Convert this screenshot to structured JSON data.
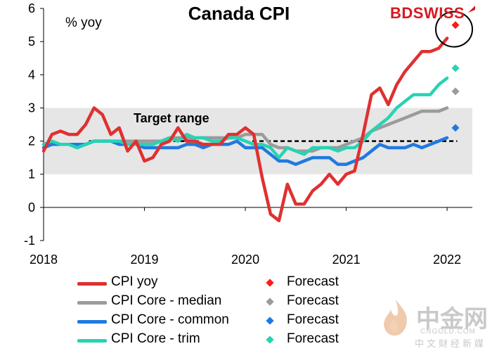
{
  "chart_data": {
    "type": "line",
    "title": "Canada CPI",
    "ylabel": "% yoy",
    "xlim": [
      2018.0,
      2022.25
    ],
    "ylim": [
      -1,
      6
    ],
    "y_ticks": [
      "-1",
      "0",
      "1",
      "2",
      "3",
      "4",
      "5",
      "6"
    ],
    "x_ticks": [
      {
        "label": "2018",
        "x": 2018.0
      },
      {
        "label": "2019",
        "x": 2019.0
      },
      {
        "label": "2020",
        "x": 2020.0
      },
      {
        "label": "2021",
        "x": 2021.0
      },
      {
        "label": "2022",
        "x": 2022.0
      }
    ],
    "target_range": {
      "label": "Target range",
      "low": 1.0,
      "high": 3.0,
      "midpoint": 2.0
    },
    "series": [
      {
        "name": "CPI yoy",
        "color": "#e03030",
        "x": [
          2018.0,
          2018.083,
          2018.167,
          2018.25,
          2018.333,
          2018.417,
          2018.5,
          2018.583,
          2018.667,
          2018.75,
          2018.833,
          2018.917,
          2019.0,
          2019.083,
          2019.167,
          2019.25,
          2019.333,
          2019.417,
          2019.5,
          2019.583,
          2019.667,
          2019.75,
          2019.833,
          2019.917,
          2020.0,
          2020.083,
          2020.167,
          2020.25,
          2020.333,
          2020.417,
          2020.5,
          2020.583,
          2020.667,
          2020.75,
          2020.833,
          2020.917,
          2021.0,
          2021.083,
          2021.167,
          2021.25,
          2021.333,
          2021.417,
          2021.5,
          2021.583,
          2021.667,
          2021.75,
          2021.833,
          2021.917,
          2022.0
        ],
        "values": [
          1.7,
          2.2,
          2.3,
          2.2,
          2.2,
          2.5,
          3.0,
          2.8,
          2.2,
          2.4,
          1.7,
          2.0,
          1.4,
          1.5,
          1.9,
          2.0,
          2.4,
          2.0,
          2.0,
          1.9,
          1.9,
          1.9,
          2.2,
          2.2,
          2.4,
          2.2,
          0.9,
          -0.2,
          -0.4,
          0.7,
          0.1,
          0.1,
          0.5,
          0.7,
          1.0,
          0.7,
          1.0,
          1.1,
          2.2,
          3.4,
          3.6,
          3.1,
          3.7,
          4.1,
          4.4,
          4.7,
          4.7,
          4.8,
          5.1
        ]
      },
      {
        "name": "CPI Core - median",
        "color": "#9b9b9b",
        "x": [
          2018.0,
          2018.083,
          2018.167,
          2018.25,
          2018.333,
          2018.417,
          2018.5,
          2018.583,
          2018.667,
          2018.75,
          2018.833,
          2018.917,
          2019.0,
          2019.083,
          2019.167,
          2019.25,
          2019.333,
          2019.417,
          2019.5,
          2019.583,
          2019.667,
          2019.75,
          2019.833,
          2019.917,
          2020.0,
          2020.083,
          2020.167,
          2020.25,
          2020.333,
          2020.417,
          2020.5,
          2020.583,
          2020.667,
          2020.75,
          2020.833,
          2020.917,
          2021.0,
          2021.083,
          2021.167,
          2021.25,
          2021.333,
          2021.417,
          2021.5,
          2021.583,
          2021.667,
          2021.75,
          2021.833,
          2021.917,
          2022.0
        ],
        "values": [
          1.9,
          1.9,
          1.9,
          1.9,
          1.9,
          1.9,
          2.0,
          2.0,
          2.0,
          2.0,
          2.0,
          2.0,
          2.0,
          2.0,
          2.0,
          2.1,
          2.1,
          2.1,
          2.1,
          2.1,
          2.1,
          2.1,
          2.1,
          2.1,
          2.2,
          2.2,
          2.2,
          1.9,
          1.8,
          1.8,
          1.7,
          1.7,
          1.7,
          1.8,
          1.8,
          1.8,
          1.9,
          2.0,
          2.1,
          2.3,
          2.4,
          2.5,
          2.6,
          2.7,
          2.8,
          2.9,
          2.9,
          2.9,
          3.0
        ]
      },
      {
        "name": "CPI Core - common",
        "color": "#1f7ae0",
        "x": [
          2018.0,
          2018.083,
          2018.167,
          2018.25,
          2018.333,
          2018.417,
          2018.5,
          2018.583,
          2018.667,
          2018.75,
          2018.833,
          2018.917,
          2019.0,
          2019.083,
          2019.167,
          2019.25,
          2019.333,
          2019.417,
          2019.5,
          2019.583,
          2019.667,
          2019.75,
          2019.833,
          2019.917,
          2020.0,
          2020.083,
          2020.167,
          2020.25,
          2020.333,
          2020.417,
          2020.5,
          2020.583,
          2020.667,
          2020.75,
          2020.833,
          2020.917,
          2021.0,
          2021.083,
          2021.167,
          2021.25,
          2021.333,
          2021.417,
          2021.5,
          2021.583,
          2021.667,
          2021.75,
          2021.833,
          2021.917,
          2022.0
        ],
        "values": [
          1.8,
          1.9,
          1.9,
          1.9,
          1.9,
          1.9,
          2.0,
          2.0,
          2.0,
          1.9,
          1.9,
          1.9,
          1.8,
          1.8,
          1.8,
          1.8,
          1.8,
          1.9,
          1.9,
          1.8,
          1.9,
          1.9,
          1.9,
          2.0,
          1.8,
          1.8,
          1.8,
          1.6,
          1.4,
          1.4,
          1.3,
          1.4,
          1.5,
          1.5,
          1.5,
          1.3,
          1.3,
          1.4,
          1.5,
          1.7,
          1.9,
          1.8,
          1.8,
          1.8,
          1.9,
          1.8,
          1.9,
          2.0,
          2.1
        ]
      },
      {
        "name": "CPI Core - trim",
        "color": "#27d3b2",
        "x": [
          2018.0,
          2018.083,
          2018.167,
          2018.25,
          2018.333,
          2018.417,
          2018.5,
          2018.583,
          2018.667,
          2018.75,
          2018.833,
          2018.917,
          2019.0,
          2019.083,
          2019.167,
          2019.25,
          2019.333,
          2019.417,
          2019.5,
          2019.583,
          2019.667,
          2019.75,
          2019.833,
          2019.917,
          2020.0,
          2020.083,
          2020.167,
          2020.25,
          2020.333,
          2020.417,
          2020.5,
          2020.583,
          2020.667,
          2020.75,
          2020.833,
          2020.917,
          2021.0,
          2021.083,
          2021.167,
          2021.25,
          2021.333,
          2021.417,
          2021.5,
          2021.583,
          2021.667,
          2021.75,
          2021.833,
          2021.917,
          2022.0
        ],
        "values": [
          1.9,
          2.0,
          1.9,
          1.9,
          1.8,
          1.9,
          2.0,
          2.0,
          2.0,
          2.0,
          1.9,
          1.9,
          1.9,
          1.9,
          2.0,
          2.1,
          2.0,
          2.2,
          2.1,
          2.1,
          2.0,
          2.0,
          2.1,
          2.1,
          2.0,
          1.9,
          1.9,
          1.8,
          1.5,
          1.8,
          1.7,
          1.6,
          1.8,
          1.8,
          1.8,
          1.7,
          1.8,
          1.8,
          2.0,
          2.3,
          2.5,
          2.7,
          3.0,
          3.2,
          3.4,
          3.4,
          3.4,
          3.7,
          3.9
        ]
      }
    ],
    "forecasts": [
      {
        "label": "Forecast",
        "color": "#ff1a1a",
        "x": 2022.083,
        "value": 5.5
      },
      {
        "label": "Forecast",
        "color": "#9b9b9b",
        "x": 2022.083,
        "value": 3.5
      },
      {
        "label": "Forecast",
        "color": "#1f7ae0",
        "x": 2022.083,
        "value": 2.4
      },
      {
        "label": "Forecast",
        "color": "#27d3b2",
        "x": 2022.083,
        "value": 4.2
      }
    ],
    "circle_highlight": {
      "x": 2022.083,
      "value": 5.5
    },
    "legend_placement": "bottom",
    "grid": false
  },
  "legend": [
    {
      "label": "CPI yoy",
      "forecast_label": "Forecast",
      "color": "#e03030",
      "diamond_color": "#ff1a1a"
    },
    {
      "label": "CPI Core - median",
      "forecast_label": "Forecast",
      "color": "#9b9b9b",
      "diamond_color": "#9b9b9b"
    },
    {
      "label": "CPI Core - common",
      "forecast_label": "Forecast",
      "color": "#1f7ae0",
      "diamond_color": "#1f7ae0"
    },
    {
      "label": "CPI Core - trim",
      "forecast_label": "Forecast",
      "color": "#27d3b2",
      "diamond_color": "#27d3b2"
    }
  ],
  "brand": {
    "text": "BDSWISS",
    "color": "#d71920"
  },
  "watermark": {
    "chinese": "中金网",
    "url": "CNGOLD.COM",
    "subtitle": "中文财经新媒体"
  }
}
